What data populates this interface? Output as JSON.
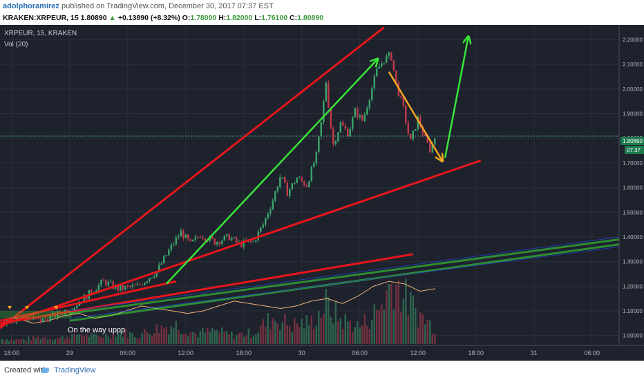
{
  "header": {
    "author": "adolphoramirez",
    "published": "published on TradingView.com, December 30, 2017 07:37 EST",
    "ticker": "KRAKEN:XRPEUR, 15",
    "price": "1.80890",
    "change": "+0.13890 (+8.32%)",
    "o_label": "O:",
    "o_value": "1.78000",
    "h_label": "H:",
    "h_value": "1.82000",
    "l_label": "L:",
    "l_value": "1.76100",
    "c_label": "C:",
    "c_value": "1.80890"
  },
  "chart_legend": {
    "symbol": "XRPEUR, 15, KRAKEN",
    "volume": "Vol (20)"
  },
  "price_badge": {
    "price": "1.80890",
    "countdown": "07:37"
  },
  "annotation": "On the way uppp",
  "footer": {
    "created_with": "Created with",
    "brand": "TradingView"
  },
  "colors": {
    "background": "#1e222d",
    "grid": "#2a2e39",
    "up": "#3aa36b",
    "down": "#c0394b",
    "red_line": "#e8161b",
    "green_arrow": "#39e639",
    "orange_arrow": "#f5a623",
    "price_badge": "#1c7a4e"
  },
  "chart_data": {
    "type": "candlestick",
    "symbol": "XRPEUR",
    "interval": "15",
    "exchange": "KRAKEN",
    "y_ticks": [
      "1.00000",
      "1.10000",
      "1.20000",
      "1.30000",
      "1.40000",
      "1.50000",
      "1.60000",
      "1.70000",
      "1.80000",
      "1.90000",
      "2.00000",
      "2.10000",
      "2.20000"
    ],
    "ylim": [
      0.96,
      2.26
    ],
    "x_ticks": [
      {
        "label": "18:00",
        "t": 0
      },
      {
        "label": "29",
        "t": 6
      },
      {
        "label": "06:00",
        "t": 12
      },
      {
        "label": "12:00",
        "t": 18
      },
      {
        "label": "18:00",
        "t": 24
      },
      {
        "label": "30",
        "t": 30
      },
      {
        "label": "06:00",
        "t": 36
      },
      {
        "label": "12:00",
        "t": 42
      },
      {
        "label": "18:00",
        "t": 48
      },
      {
        "label": "31",
        "t": 54
      },
      {
        "label": "06:00",
        "t": 60
      }
    ],
    "xlim": [
      -1.2,
      62.8
    ],
    "price_path": [
      [
        -1.0,
        1.06
      ],
      [
        1.0,
        1.07
      ],
      [
        3.0,
        1.06
      ],
      [
        5.0,
        1.09
      ],
      [
        6.5,
        1.12
      ],
      [
        8.0,
        1.17
      ],
      [
        9.5,
        1.22
      ],
      [
        11.0,
        1.19
      ],
      [
        13.0,
        1.2
      ],
      [
        15.0,
        1.26
      ],
      [
        16.5,
        1.36
      ],
      [
        17.5,
        1.42
      ],
      [
        18.5,
        1.37
      ],
      [
        19.5,
        1.41
      ],
      [
        21.0,
        1.38
      ],
      [
        22.5,
        1.4
      ],
      [
        23.5,
        1.37
      ],
      [
        25.0,
        1.38
      ],
      [
        26.0,
        1.45
      ],
      [
        27.0,
        1.55
      ],
      [
        27.8,
        1.65
      ],
      [
        28.5,
        1.58
      ],
      [
        29.5,
        1.64
      ],
      [
        30.5,
        1.61
      ],
      [
        31.5,
        1.73
      ],
      [
        32.0,
        1.86
      ],
      [
        32.5,
        2.03
      ],
      [
        33.2,
        1.77
      ],
      [
        34.0,
        1.86
      ],
      [
        34.8,
        1.82
      ],
      [
        35.5,
        1.91
      ],
      [
        36.3,
        1.87
      ],
      [
        37.0,
        1.97
      ],
      [
        37.8,
        2.08
      ],
      [
        38.5,
        2.12
      ],
      [
        39.2,
        2.14
      ],
      [
        39.8,
        2.01
      ],
      [
        40.5,
        1.92
      ],
      [
        41.2,
        1.78
      ],
      [
        42.0,
        1.88
      ],
      [
        42.7,
        1.8
      ],
      [
        43.3,
        1.75
      ],
      [
        43.8,
        1.81
      ]
    ],
    "volume_path": [
      [
        -1.0,
        0.06
      ],
      [
        1.0,
        0.05
      ],
      [
        3.0,
        0.08
      ],
      [
        5.0,
        0.07
      ],
      [
        7.0,
        0.12
      ],
      [
        9.0,
        0.09
      ],
      [
        11.0,
        0.14
      ],
      [
        13.0,
        0.1
      ],
      [
        15.0,
        0.18
      ],
      [
        17.0,
        0.22
      ],
      [
        19.0,
        0.12
      ],
      [
        21.0,
        0.15
      ],
      [
        23.0,
        0.1
      ],
      [
        25.0,
        0.13
      ],
      [
        27.0,
        0.3
      ],
      [
        29.0,
        0.22
      ],
      [
        31.0,
        0.25
      ],
      [
        32.5,
        0.45
      ],
      [
        34.0,
        0.28
      ],
      [
        36.0,
        0.2
      ],
      [
        38.0,
        0.4
      ],
      [
        39.5,
        0.75
      ],
      [
        40.5,
        0.55
      ],
      [
        42.0,
        0.35
      ],
      [
        43.8,
        0.18
      ]
    ],
    "volume_ma_levels": [
      1.06,
      1.07,
      1.05,
      1.06,
      1.08,
      1.09,
      1.07,
      1.08,
      1.1,
      1.12,
      1.11,
      1.1,
      1.09,
      1.1,
      1.12,
      1.14,
      1.13,
      1.12,
      1.11,
      1.12,
      1.14,
      1.15,
      1.13,
      1.16,
      1.2,
      1.22,
      1.21,
      1.18,
      1.19
    ],
    "lines": [
      {
        "kind": "trend",
        "color": "red",
        "from": [
          -1.2,
          1.03
        ],
        "to": [
          38.5,
          2.25
        ]
      },
      {
        "kind": "trend",
        "color": "red",
        "from": [
          -1.2,
          1.04
        ],
        "to": [
          48.5,
          1.71
        ]
      },
      {
        "kind": "trend",
        "color": "red",
        "from": [
          -1.2,
          1.05
        ],
        "to": [
          41.5,
          1.33
        ]
      },
      {
        "kind": "trend",
        "color": "red",
        "from": [
          -1.2,
          1.06
        ],
        "to": [
          17.0,
          1.22
        ]
      },
      {
        "kind": "channel",
        "color": "green",
        "from": [
          6.0,
          1.09
        ],
        "to": [
          62.8,
          1.39
        ]
      },
      {
        "kind": "channel",
        "color": "green",
        "from": [
          6.0,
          1.06
        ],
        "to": [
          62.8,
          1.37
        ]
      },
      {
        "kind": "channel",
        "color": "blue",
        "from": [
          6.0,
          1.1
        ],
        "to": [
          62.8,
          1.4
        ]
      },
      {
        "kind": "channel",
        "color": "blue",
        "from": [
          6.0,
          1.07
        ],
        "to": [
          62.8,
          1.36
        ]
      },
      {
        "kind": "arrow",
        "color": "green",
        "from": [
          16.0,
          1.21
        ],
        "to": [
          37.8,
          2.12
        ]
      },
      {
        "kind": "arrow",
        "color": "orange",
        "from": [
          39.0,
          2.07
        ],
        "to": [
          44.5,
          1.71
        ]
      },
      {
        "kind": "arrow",
        "color": "green",
        "from": [
          44.8,
          1.72
        ],
        "to": [
          47.2,
          2.21
        ]
      }
    ]
  }
}
